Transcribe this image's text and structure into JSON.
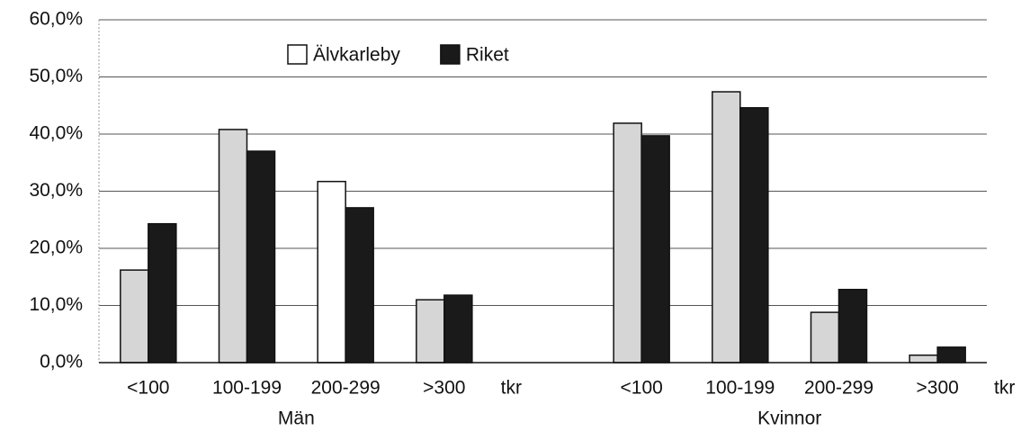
{
  "chart_data": {
    "type": "bar",
    "categories": [
      "<100",
      "100-199",
      "200-299",
      ">300",
      null,
      "<100",
      "100-199",
      "200-299",
      ">300"
    ],
    "groups": [
      "Män",
      "Kvinnor"
    ],
    "unit": "tkr",
    "series": [
      {
        "name": "Älvkarleby",
        "color": "#ffffff",
        "point_colors": [
          "#d6d6d6",
          "#d6d6d6",
          "#ffffff",
          "#d6d6d6",
          null,
          "#d6d6d6",
          "#d6d6d6",
          "#d6d6d6",
          "#d6d6d6"
        ],
        "values": [
          16.2,
          40.8,
          31.7,
          11.0,
          null,
          41.9,
          47.4,
          8.8,
          1.3
        ]
      },
      {
        "name": "Riket",
        "color": "#1a1a1a",
        "values": [
          24.3,
          37.0,
          27.1,
          11.8,
          null,
          39.7,
          44.6,
          12.8,
          2.7
        ]
      }
    ],
    "ylim": [
      0,
      60
    ],
    "yticks": [
      {
        "value": 0,
        "label": "0,0%"
      },
      {
        "value": 10,
        "label": "10,0%"
      },
      {
        "value": 20,
        "label": "20,0%"
      },
      {
        "value": 30,
        "label": "30,0%"
      },
      {
        "value": 40,
        "label": "40,0%"
      },
      {
        "value": 50,
        "label": "50,0%"
      },
      {
        "value": 60,
        "label": "60,0%"
      }
    ],
    "grid": true,
    "legend": "top"
  }
}
